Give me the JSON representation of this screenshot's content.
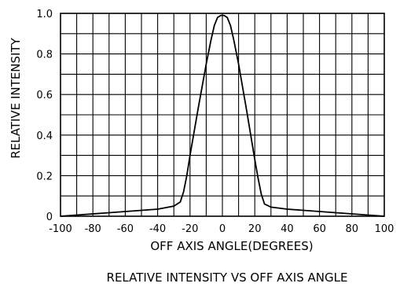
{
  "chart_data": {
    "type": "line",
    "title": "RELATIVE INTENSITY VS OFF AXIS ANGLE",
    "xlabel": "OFF AXIS ANGLE(DEGREES)",
    "ylabel": "RELATIVE INTENSITY",
    "xlim": [
      -100,
      100
    ],
    "ylim": [
      0,
      1.0
    ],
    "grid": true,
    "x_ticks": [
      -100,
      -80,
      -60,
      -40,
      -20,
      0,
      20,
      40,
      60,
      80,
      100
    ],
    "x_tick_labels": [
      "-100",
      "-80",
      "-60",
      "-40",
      "-20",
      "0",
      "20",
      "40",
      "60",
      "80",
      "100"
    ],
    "y_ticks": [
      0,
      0.2,
      0.4,
      0.6,
      0.8,
      1.0
    ],
    "y_tick_labels": [
      "0",
      "0.2",
      "0.4",
      "0.6",
      "0.8",
      "1.0"
    ],
    "series": [
      {
        "x": [
          -100,
          -40,
          -30,
          -26,
          -24,
          -22,
          -20,
          -15,
          -10,
          -7,
          -5,
          -3,
          -1,
          0,
          1,
          3,
          5,
          7,
          10,
          15,
          20,
          22,
          24,
          26,
          30,
          40,
          100
        ],
        "y": [
          0,
          0.035,
          0.05,
          0.07,
          0.12,
          0.2,
          0.3,
          0.53,
          0.75,
          0.87,
          0.94,
          0.98,
          0.99,
          0.99,
          0.99,
          0.98,
          0.94,
          0.87,
          0.75,
          0.52,
          0.28,
          0.19,
          0.11,
          0.06,
          0.045,
          0.035,
          0
        ]
      }
    ]
  }
}
